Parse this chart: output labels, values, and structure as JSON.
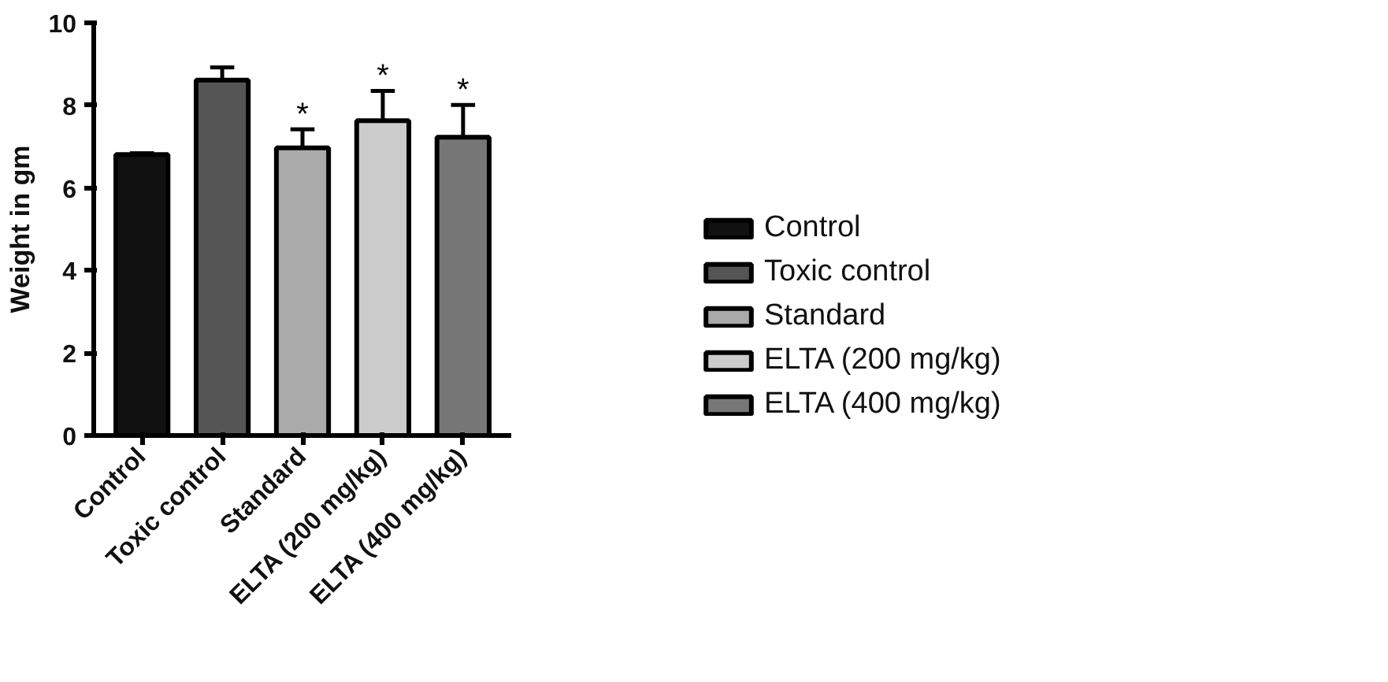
{
  "chart_data": {
    "type": "bar",
    "ylabel": "Weight in gm",
    "categories": [
      "Control",
      "Toxic control",
      "Standard",
      "ELTA (200 mg/kg)",
      "ELTA (400 mg/kg)"
    ],
    "series": [
      {
        "name": "Control",
        "color": "#111111",
        "values": [
          6.81,
          null,
          null,
          null,
          null
        ],
        "errors": [
          [
            6.81,
            6.84
          ],
          null,
          null,
          null,
          null
        ]
      },
      {
        "name": "Toxic control",
        "color": "#555555",
        "values": [
          null,
          8.61,
          null,
          null,
          null
        ],
        "errors": [
          null,
          [
            8.61,
            8.92
          ],
          null,
          null,
          null
        ]
      },
      {
        "name": "Standard",
        "color": "#aaaaaa",
        "values": [
          null,
          null,
          6.97,
          null,
          null
        ],
        "errors": [
          null,
          null,
          [
            6.97,
            7.42
          ],
          null,
          null
        ],
        "value_labels": [
          null,
          null,
          "*",
          null,
          null
        ]
      },
      {
        "name": "ELTA (200 mg/kg)",
        "color": "#cccccc",
        "values": [
          null,
          null,
          null,
          7.63,
          null
        ],
        "errors": [
          null,
          null,
          null,
          [
            7.63,
            8.35
          ],
          null
        ],
        "value_labels": [
          null,
          null,
          null,
          "*",
          null
        ]
      },
      {
        "name": "ELTA (400 mg/kg)",
        "color": "#777777",
        "values": [
          null,
          null,
          null,
          null,
          7.23
        ],
        "errors": [
          null,
          null,
          null,
          null,
          [
            7.23,
            8.01
          ]
        ],
        "value_labels": [
          null,
          null,
          null,
          null,
          "*"
        ]
      }
    ],
    "ylim": [
      0,
      10
    ],
    "yticks": [
      0,
      2,
      4,
      6,
      8,
      10
    ],
    "grid": false,
    "legend": "right"
  }
}
